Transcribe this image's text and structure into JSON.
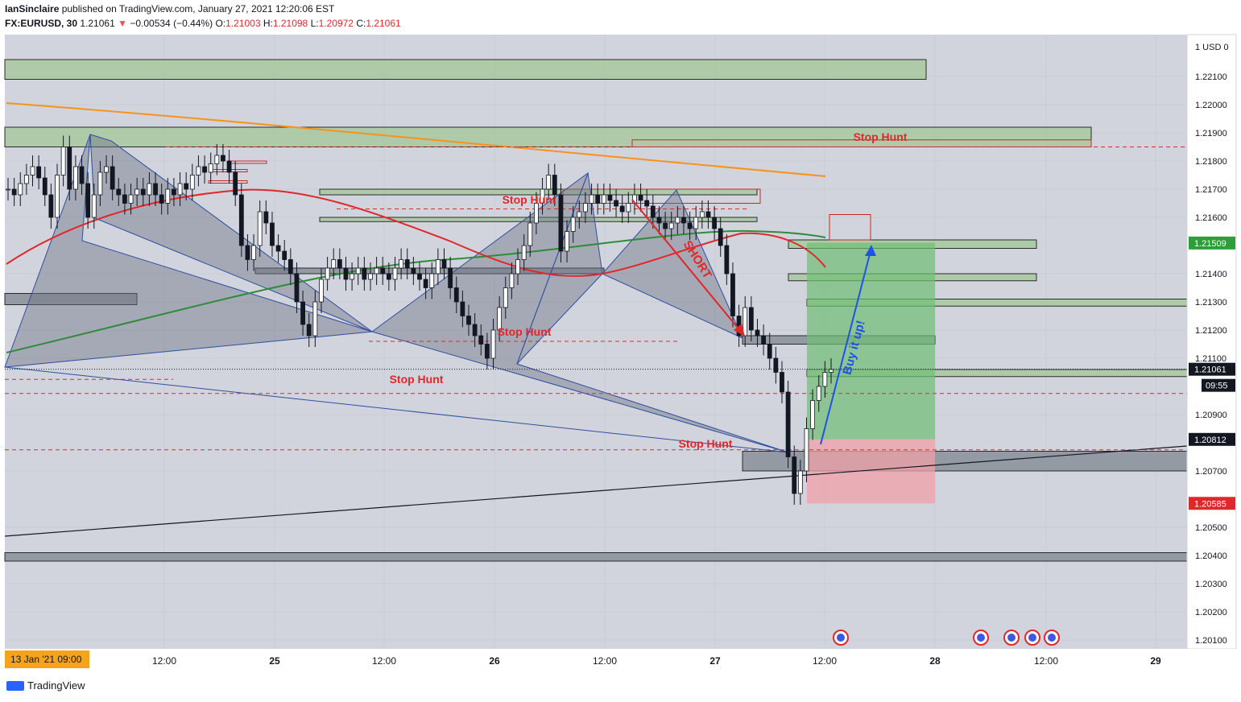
{
  "header": {
    "publisher": "IanSinclaire",
    "published_line": " published on TradingView.com, January 27, 2021 12:20:06 EST",
    "symbol": "FX:EURUSD, 30",
    "last": "1.21061",
    "change": "−0.00534 (−0.44%)",
    "o_label": "O:",
    "o_value": "1.21003",
    "h_label": "H:",
    "h_value": "1.21098",
    "l_label": "L:",
    "l_value": "1.20972",
    "c_label": "C:",
    "c_value": "1.21061"
  },
  "colors": {
    "bg": "#d1d4dc",
    "up": "#26a69a",
    "down": "#ef5350",
    "accent_red": "#e0282b",
    "blue": "#1e53e5",
    "green_zone": "#6fbf73"
  },
  "chart_data": {
    "type": "candlestick",
    "symbol": "FX:EURUSD",
    "interval": "30",
    "ylim": [
      1.2008,
      1.223
    ],
    "y_ticks": [
      "1.20100",
      "1.20200",
      "1.20300",
      "1.20400",
      "1.20500",
      "1.20700",
      "1.20900",
      "1.21100",
      "1.21200",
      "1.21300",
      "1.21400",
      "1.21600",
      "1.21700",
      "1.21800",
      "1.21900",
      "1.22000",
      "1.22100"
    ],
    "y_unit_label": "1 USD 0",
    "x_ticks": [
      "12:00",
      "25",
      "12:00",
      "26",
      "12:00",
      "27",
      "12:00",
      "28",
      "12:00",
      "29"
    ],
    "x_start_label": "13 Jan '21  09:00",
    "price_labels": [
      {
        "value": "1.21509",
        "color": "#2e9e3a"
      },
      {
        "value": "1.21061",
        "color": "#131722"
      },
      {
        "value": "09:55",
        "color": "#131722"
      },
      {
        "value": "1.20812",
        "color": "#131722"
      },
      {
        "value": "1.20585",
        "color": "#e0282b"
      }
    ],
    "annotations": [
      {
        "text": "Stop Hunt",
        "price": 1.2187
      },
      {
        "text": "Stop Hunt",
        "price": 1.2167
      },
      {
        "text": "Stop Hunt",
        "price": 1.212
      },
      {
        "text": "Stop Hunt",
        "price": 1.2101
      },
      {
        "text": "Stop Hunt",
        "price": 1.2078
      },
      {
        "text": "SHORT",
        "price": 1.2145
      },
      {
        "text": "Buy it up!",
        "price": 1.2125
      }
    ],
    "close_series": [
      1.217,
      1.2168,
      1.2172,
      1.2175,
      1.2178,
      1.2174,
      1.2168,
      1.216,
      1.2175,
      1.2185,
      1.217,
      1.2178,
      1.2172,
      1.216,
      1.2168,
      1.2176,
      1.2178,
      1.217,
      1.2168,
      1.2165,
      1.2168,
      1.217,
      1.2168,
      1.2172,
      1.2168,
      1.2165,
      1.217,
      1.2168,
      1.2172,
      1.217,
      1.2175,
      1.2178,
      1.2176,
      1.2179,
      1.2182,
      1.218,
      1.2176,
      1.2168,
      1.215,
      1.2145,
      1.215,
      1.2162,
      1.2158,
      1.215,
      1.2148,
      1.2145,
      1.214,
      1.213,
      1.2122,
      1.2118,
      1.213,
      1.2138,
      1.2142,
      1.2145,
      1.2142,
      1.2138,
      1.214,
      1.2142,
      1.2138,
      1.214,
      1.2142,
      1.214,
      1.2138,
      1.2142,
      1.2145,
      1.2142,
      1.214,
      1.2138,
      1.2135,
      1.214,
      1.2145,
      1.2142,
      1.2135,
      1.213,
      1.2125,
      1.2122,
      1.2118,
      1.2115,
      1.211,
      1.212,
      1.2128,
      1.2135,
      1.214,
      1.2145,
      1.215,
      1.2158,
      1.2165,
      1.217,
      1.2175,
      1.2168,
      1.2148,
      1.2155,
      1.216,
      1.2162,
      1.2165,
      1.2168,
      1.2165,
      1.2168,
      1.2166,
      1.2164,
      1.2162,
      1.2165,
      1.2168,
      1.2166,
      1.2164,
      1.216,
      1.2158,
      1.2156,
      1.2158,
      1.216,
      1.2158,
      1.2156,
      1.216,
      1.2162,
      1.216,
      1.2156,
      1.215,
      1.214,
      1.2125,
      1.2118,
      1.2128,
      1.212,
      1.2118,
      1.2115,
      1.211,
      1.2105,
      1.2098,
      1.2075,
      1.2062,
      1.207,
      1.2085,
      1.2095,
      1.21,
      1.2105,
      1.2106
    ]
  }
}
